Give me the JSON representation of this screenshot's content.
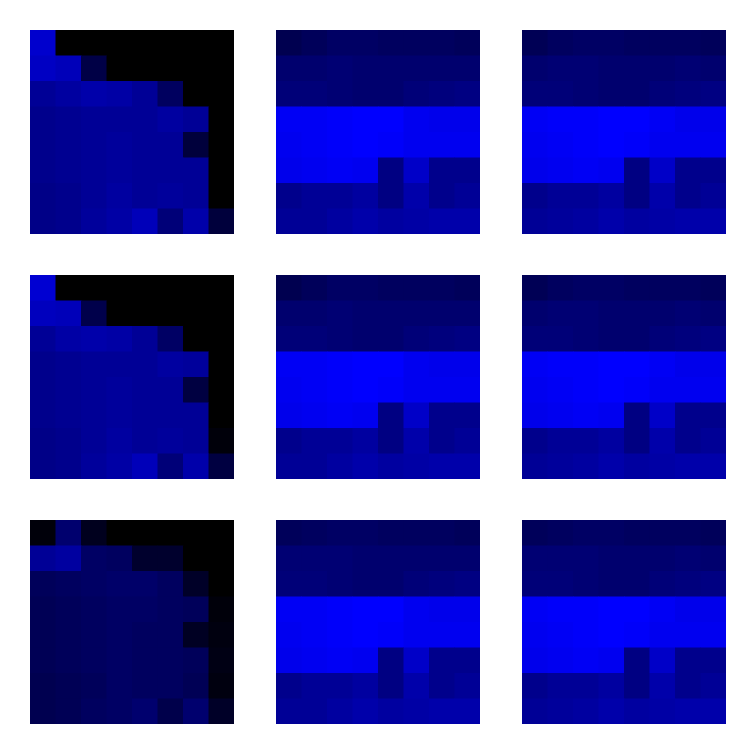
{
  "chart_data": [
    {
      "type": "heatmap",
      "xlim": [
        0,
        8
      ],
      "ylim": [
        0,
        8
      ],
      "tick_labels": false,
      "color": "#0000ff",
      "color_range": [
        0,
        255
      ],
      "cells": [
        [
          205,
          0,
          0,
          0,
          0,
          0,
          0,
          0
        ],
        [
          195,
          185,
          70,
          0,
          0,
          0,
          0,
          0
        ],
        [
          150,
          160,
          170,
          165,
          150,
          95,
          0,
          0
        ],
        [
          140,
          145,
          150,
          150,
          150,
          160,
          150,
          0
        ],
        [
          140,
          145,
          150,
          155,
          150,
          150,
          60,
          0
        ],
        [
          140,
          145,
          150,
          155,
          150,
          150,
          150,
          0
        ],
        [
          135,
          140,
          150,
          160,
          150,
          155,
          150,
          0
        ],
        [
          135,
          140,
          155,
          165,
          185,
          120,
          170,
          60
        ]
      ]
    },
    {
      "type": "heatmap",
      "xlim": [
        0,
        8
      ],
      "ylim": [
        0,
        8
      ],
      "tick_labels": false,
      "color": "#0000ff",
      "color_range": [
        0,
        255
      ],
      "cells": [
        [
          80,
          90,
          100,
          100,
          95,
          95,
          95,
          90
        ],
        [
          110,
          110,
          115,
          110,
          110,
          110,
          110,
          110
        ],
        [
          120,
          120,
          115,
          110,
          110,
          120,
          125,
          130
        ],
        [
          245,
          245,
          250,
          255,
          255,
          240,
          235,
          235
        ],
        [
          240,
          245,
          250,
          255,
          250,
          240,
          240,
          240
        ],
        [
          235,
          240,
          245,
          240,
          130,
          200,
          140,
          140
        ],
        [
          140,
          150,
          150,
          160,
          130,
          170,
          140,
          150
        ],
        [
          150,
          150,
          160,
          170,
          160,
          165,
          170,
          170
        ]
      ]
    },
    {
      "type": "heatmap",
      "xlim": [
        0,
        8
      ],
      "ylim": [
        0,
        8
      ],
      "tick_labels": false,
      "color": "#0000ff",
      "color_range": [
        0,
        255
      ],
      "cells": [
        [
          85,
          95,
          100,
          100,
          95,
          95,
          95,
          90
        ],
        [
          110,
          115,
          115,
          110,
          110,
          110,
          115,
          110
        ],
        [
          120,
          120,
          115,
          110,
          110,
          120,
          125,
          130
        ],
        [
          245,
          250,
          250,
          255,
          255,
          245,
          235,
          235
        ],
        [
          240,
          245,
          250,
          255,
          250,
          240,
          240,
          240
        ],
        [
          235,
          240,
          245,
          240,
          130,
          200,
          140,
          140
        ],
        [
          140,
          150,
          150,
          160,
          130,
          170,
          140,
          150
        ],
        [
          150,
          155,
          160,
          170,
          160,
          165,
          170,
          170
        ]
      ]
    },
    {
      "type": "heatmap",
      "xlim": [
        0,
        8
      ],
      "ylim": [
        0,
        8
      ],
      "tick_labels": false,
      "color": "#0000ff",
      "color_range": [
        0,
        255
      ],
      "cells": [
        [
          210,
          0,
          0,
          0,
          0,
          0,
          0,
          0
        ],
        [
          190,
          185,
          75,
          0,
          0,
          0,
          0,
          0
        ],
        [
          150,
          165,
          170,
          165,
          150,
          100,
          0,
          0
        ],
        [
          140,
          145,
          150,
          150,
          150,
          160,
          155,
          0
        ],
        [
          140,
          145,
          150,
          155,
          150,
          150,
          65,
          0
        ],
        [
          140,
          145,
          150,
          155,
          150,
          150,
          150,
          0
        ],
        [
          135,
          140,
          150,
          160,
          150,
          155,
          150,
          10
        ],
        [
          135,
          140,
          155,
          165,
          185,
          120,
          170,
          65
        ]
      ]
    },
    {
      "type": "heatmap",
      "xlim": [
        0,
        8
      ],
      "ylim": [
        0,
        8
      ],
      "tick_labels": false,
      "color": "#0000ff",
      "color_range": [
        0,
        255
      ],
      "cells": [
        [
          80,
          90,
          100,
          100,
          95,
          95,
          95,
          90
        ],
        [
          110,
          110,
          115,
          110,
          110,
          110,
          110,
          110
        ],
        [
          120,
          120,
          115,
          110,
          110,
          120,
          125,
          130
        ],
        [
          245,
          245,
          250,
          255,
          255,
          240,
          235,
          235
        ],
        [
          240,
          245,
          250,
          255,
          250,
          240,
          240,
          240
        ],
        [
          235,
          240,
          245,
          240,
          130,
          200,
          140,
          140
        ],
        [
          140,
          150,
          150,
          160,
          130,
          170,
          140,
          150
        ],
        [
          150,
          150,
          160,
          170,
          160,
          165,
          170,
          170
        ]
      ]
    },
    {
      "type": "heatmap",
      "xlim": [
        0,
        8
      ],
      "ylim": [
        0,
        8
      ],
      "tick_labels": false,
      "color": "#0000ff",
      "color_range": [
        0,
        255
      ],
      "cells": [
        [
          85,
          95,
          100,
          100,
          95,
          95,
          95,
          90
        ],
        [
          110,
          115,
          115,
          110,
          110,
          110,
          115,
          110
        ],
        [
          120,
          120,
          115,
          110,
          110,
          120,
          125,
          130
        ],
        [
          245,
          250,
          250,
          255,
          255,
          245,
          235,
          235
        ],
        [
          240,
          245,
          250,
          255,
          250,
          240,
          240,
          240
        ],
        [
          235,
          240,
          245,
          240,
          130,
          200,
          140,
          140
        ],
        [
          140,
          150,
          150,
          160,
          130,
          170,
          140,
          150
        ],
        [
          150,
          155,
          160,
          170,
          160,
          165,
          170,
          170
        ]
      ]
    },
    {
      "type": "heatmap",
      "xlim": [
        0,
        8
      ],
      "ylim": [
        0,
        8
      ],
      "tick_labels": false,
      "color": "#0000ff",
      "color_range": [
        0,
        255
      ],
      "cells": [
        [
          10,
          110,
          30,
          0,
          0,
          0,
          0,
          0
        ],
        [
          150,
          160,
          100,
          95,
          45,
          45,
          0,
          0
        ],
        [
          90,
          95,
          100,
          105,
          105,
          95,
          40,
          0
        ],
        [
          85,
          90,
          95,
          100,
          100,
          95,
          90,
          10
        ],
        [
          85,
          90,
          95,
          100,
          95,
          95,
          35,
          15
        ],
        [
          85,
          90,
          95,
          100,
          95,
          95,
          90,
          20
        ],
        [
          80,
          85,
          90,
          100,
          95,
          95,
          85,
          15
        ],
        [
          80,
          85,
          95,
          100,
          110,
          75,
          110,
          40
        ]
      ]
    },
    {
      "type": "heatmap",
      "xlim": [
        0,
        8
      ],
      "ylim": [
        0,
        8
      ],
      "tick_labels": false,
      "color": "#0000ff",
      "color_range": [
        0,
        255
      ],
      "cells": [
        [
          90,
          95,
          100,
          100,
          95,
          95,
          95,
          90
        ],
        [
          115,
          115,
          115,
          110,
          110,
          110,
          110,
          110
        ],
        [
          120,
          120,
          115,
          110,
          110,
          120,
          125,
          130
        ],
        [
          245,
          245,
          250,
          255,
          255,
          240,
          235,
          235
        ],
        [
          240,
          245,
          250,
          255,
          250,
          240,
          240,
          240
        ],
        [
          235,
          240,
          245,
          240,
          130,
          200,
          140,
          140
        ],
        [
          140,
          150,
          150,
          160,
          130,
          170,
          140,
          150
        ],
        [
          150,
          150,
          160,
          170,
          160,
          165,
          170,
          170
        ]
      ]
    },
    {
      "type": "heatmap",
      "xlim": [
        0,
        8
      ],
      "ylim": [
        0,
        8
      ],
      "tick_labels": false,
      "color": "#0000ff",
      "color_range": [
        0,
        255
      ],
      "cells": [
        [
          90,
          95,
          100,
          100,
          95,
          95,
          95,
          90
        ],
        [
          115,
          115,
          115,
          110,
          110,
          110,
          115,
          110
        ],
        [
          120,
          120,
          115,
          110,
          110,
          120,
          125,
          130
        ],
        [
          245,
          250,
          250,
          255,
          255,
          245,
          235,
          235
        ],
        [
          240,
          245,
          250,
          255,
          250,
          240,
          240,
          240
        ],
        [
          235,
          240,
          245,
          240,
          130,
          200,
          140,
          140
        ],
        [
          140,
          150,
          150,
          160,
          130,
          170,
          140,
          150
        ],
        [
          150,
          155,
          160,
          170,
          160,
          165,
          170,
          170
        ]
      ]
    }
  ]
}
